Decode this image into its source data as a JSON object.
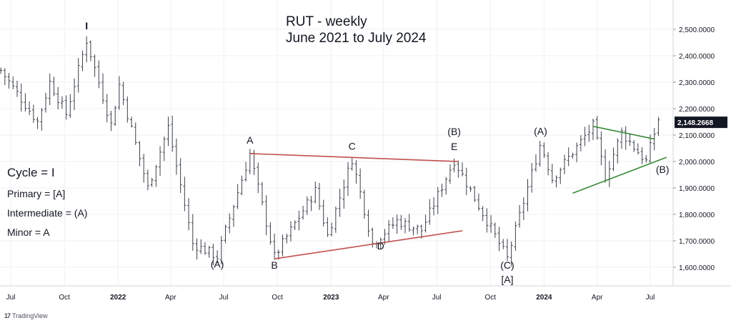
{
  "chart_data": {
    "type": "ohlc",
    "title": [
      "RUT - weekly",
      "June 2021 to July 2024"
    ],
    "ylim": [
      1510,
      2555
    ],
    "y_ticks": [
      {
        "value": 2500,
        "label": "2,500.0000"
      },
      {
        "value": 2400,
        "label": "2,400.0000"
      },
      {
        "value": 2300,
        "label": "2,300.0000"
      },
      {
        "value": 2200,
        "label": "2,200.0000"
      },
      {
        "value": 2100,
        "label": "2,100.0000"
      },
      {
        "value": 2000,
        "label": "2,000.0000"
      },
      {
        "value": 1900,
        "label": "1,900.0000"
      },
      {
        "value": 1800,
        "label": "1,800.0000"
      },
      {
        "value": 1700,
        "label": "1,700.0000"
      },
      {
        "value": 1600,
        "label": "1,600.0000"
      }
    ],
    "x_ticks": [
      {
        "date": "2021-07-01",
        "label": "Jul",
        "bold": false
      },
      {
        "date": "2021-10-01",
        "label": "Oct",
        "bold": false
      },
      {
        "date": "2022-01-01",
        "label": "2022",
        "bold": true
      },
      {
        "date": "2022-04-01",
        "label": "Apr",
        "bold": false
      },
      {
        "date": "2022-07-01",
        "label": "Jul",
        "bold": false
      },
      {
        "date": "2022-10-01",
        "label": "Oct",
        "bold": false
      },
      {
        "date": "2023-01-01",
        "label": "2023",
        "bold": true
      },
      {
        "date": "2023-04-01",
        "label": "Apr",
        "bold": false
      },
      {
        "date": "2023-07-01",
        "label": "Jul",
        "bold": false
      },
      {
        "date": "2023-10-01",
        "label": "Oct",
        "bold": false
      },
      {
        "date": "2024-01-01",
        "label": "2024",
        "bold": true
      },
      {
        "date": "2024-04-01",
        "label": "Apr",
        "bold": false
      },
      {
        "date": "2024-07-01",
        "label": "Jul",
        "bold": false
      }
    ],
    "last_price": {
      "value": 2148.2668,
      "label": "2,148.2668"
    },
    "pivots": [
      {
        "date": "2021-06-14",
        "value": 2345
      },
      {
        "date": "2021-08-16",
        "value": 2150
      },
      {
        "date": "2021-09-06",
        "value": 2300
      },
      {
        "date": "2021-10-04",
        "value": 2180
      },
      {
        "date": "2021-11-08",
        "value": 2458
      },
      {
        "date": "2021-12-20",
        "value": 2140
      },
      {
        "date": "2022-01-03",
        "value": 2290
      },
      {
        "date": "2022-02-21",
        "value": 1900
      },
      {
        "date": "2022-03-28",
        "value": 2130
      },
      {
        "date": "2022-05-09",
        "value": 1690
      },
      {
        "date": "2022-06-20",
        "value": 1640
      },
      {
        "date": "2022-08-15",
        "value": 2030
      },
      {
        "date": "2022-09-26",
        "value": 1640
      },
      {
        "date": "2022-12-05",
        "value": 1890
      },
      {
        "date": "2022-12-26",
        "value": 1720
      },
      {
        "date": "2023-02-06",
        "value": 2010
      },
      {
        "date": "2023-03-13",
        "value": 1690
      },
      {
        "date": "2023-04-24",
        "value": 1775
      },
      {
        "date": "2023-06-05",
        "value": 1740
      },
      {
        "date": "2023-07-31",
        "value": 2005
      },
      {
        "date": "2023-10-30",
        "value": 1633
      },
      {
        "date": "2023-12-26",
        "value": 2070
      },
      {
        "date": "2024-01-15",
        "value": 1935
      },
      {
        "date": "2024-03-25",
        "value": 2135
      },
      {
        "date": "2024-04-15",
        "value": 1945
      },
      {
        "date": "2024-05-13",
        "value": 2110
      },
      {
        "date": "2024-06-24",
        "value": 2000
      },
      {
        "date": "2024-07-15",
        "value": 2160
      }
    ],
    "lines": [
      {
        "color": "#c0504d",
        "from": {
          "date": "2022-08-15",
          "value": 2030
        },
        "to": {
          "date": "2023-08-07",
          "value": 2000
        }
      },
      {
        "color": "#c0504d",
        "from": {
          "date": "2022-09-26",
          "value": 1632
        },
        "to": {
          "date": "2023-08-14",
          "value": 1738
        }
      },
      {
        "color": "#3a8a3a",
        "from": {
          "date": "2024-03-25",
          "value": 2133
        },
        "to": {
          "date": "2024-07-08",
          "value": 2085
        }
      },
      {
        "color": "#3a8a3a",
        "from": {
          "date": "2024-02-19",
          "value": 1880
        },
        "to": {
          "date": "2024-07-29",
          "value": 2016
        }
      }
    ],
    "annotations": [
      {
        "text": "I",
        "date": "2021-11-08",
        "value": 2500,
        "bold": true
      },
      {
        "text": "(A)",
        "date": "2022-06-20",
        "value": 1598
      },
      {
        "text": "A",
        "date": "2022-08-15",
        "value": 2067
      },
      {
        "text": "B",
        "date": "2022-09-26",
        "value": 1595
      },
      {
        "text": "C",
        "date": "2023-02-06",
        "value": 2045
      },
      {
        "text": "D",
        "date": "2023-03-27",
        "value": 1667
      },
      {
        "text": "(B)",
        "date": "2023-07-31",
        "value": 2100
      },
      {
        "text": "E",
        "date": "2023-07-31",
        "value": 2043
      },
      {
        "text": "(C)",
        "date": "2023-10-30",
        "value": 1595
      },
      {
        "text": "[A]",
        "date": "2023-10-30",
        "value": 1540
      },
      {
        "text": "(A)",
        "date": "2023-12-26",
        "value": 2102
      },
      {
        "text": "(B)",
        "date": "2024-07-22",
        "value": 1957
      }
    ]
  },
  "legend": {
    "cycle": "Cycle = I",
    "primary": "Primary = [A]",
    "intermediate": "Intermediate = (A)",
    "minor": "Minor = A"
  },
  "branding": {
    "name": "TradingView",
    "icon": "tradingview-logo-icon"
  },
  "colors": {
    "bars": "#3c4048",
    "red_lines": "#c0504d",
    "green_lines": "#3a8a3a",
    "price_tag": "#131722"
  }
}
